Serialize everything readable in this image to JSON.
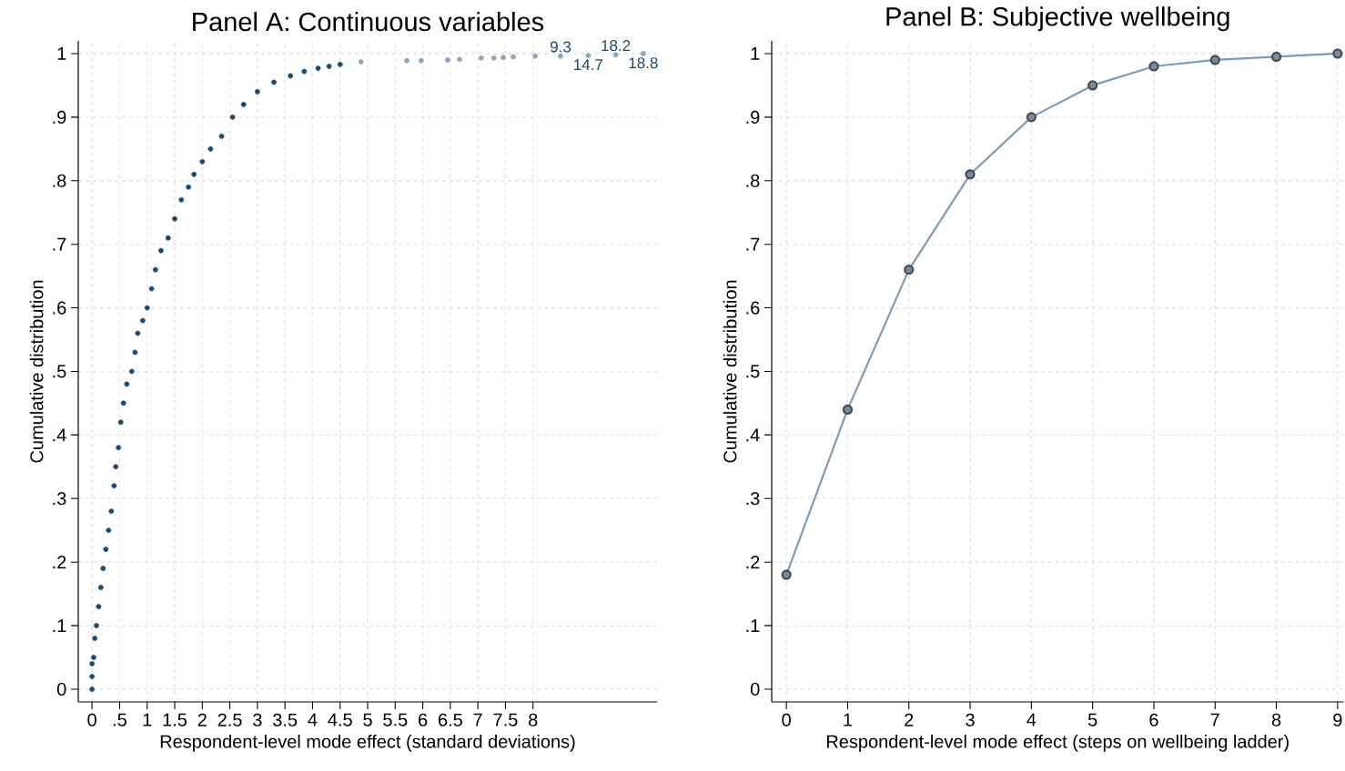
{
  "chart_data": [
    {
      "type": "scatter",
      "title": "Panel A: Continuous variables",
      "xlabel": "Respondent-level mode effect (standard deviations)",
      "ylabel": "Cumulative distribution",
      "xlim": [
        -0.25,
        10.25
      ],
      "ylim": [
        -0.02,
        1.02
      ],
      "xticks": [
        0,
        {
          "value": 0.5,
          "label": ".5"
        },
        1,
        1.5,
        2,
        2.5,
        3,
        3.5,
        4,
        4.5,
        5,
        5.5,
        6,
        6.5,
        7,
        7.5,
        8
      ],
      "yticks": [
        0,
        {
          "value": 0.1,
          "label": ".1"
        },
        {
          "value": 0.2,
          "label": ".2"
        },
        {
          "value": 0.3,
          "label": ".3"
        },
        {
          "value": 0.4,
          "label": ".4"
        },
        {
          "value": 0.5,
          "label": ".5"
        },
        {
          "value": 0.6,
          "label": ".6"
        },
        {
          "value": 0.7,
          "label": ".7"
        },
        {
          "value": 0.8,
          "label": ".8"
        },
        {
          "value": 0.9,
          "label": ".9"
        },
        1
      ],
      "grid": true,
      "marker": "circle",
      "series": [
        {
          "color": "#1c4a6e",
          "x": [
            0,
            0,
            0,
            0.03,
            0.05,
            0.08,
            0.12,
            0.16,
            0.2,
            0.25,
            0.3,
            0.35,
            0.4,
            0.43,
            0.48,
            0.52,
            0.57,
            0.63,
            0.72,
            0.78,
            0.83,
            0.92,
            1.0,
            1.08,
            1.15,
            1.25,
            1.38,
            1.5,
            1.62,
            1.75,
            1.85,
            2.0,
            2.15,
            2.35,
            2.55,
            2.75,
            3.0,
            3.3,
            3.6,
            3.85,
            4.1,
            4.3,
            4.5
          ],
          "values": [
            0,
            0.02,
            0.04,
            0.05,
            0.08,
            0.1,
            0.13,
            0.16,
            0.19,
            0.22,
            0.25,
            0.28,
            0.32,
            0.35,
            0.38,
            0.42,
            0.45,
            0.48,
            0.5,
            0.53,
            0.56,
            0.58,
            0.6,
            0.63,
            0.66,
            0.69,
            0.71,
            0.74,
            0.77,
            0.79,
            0.81,
            0.83,
            0.85,
            0.87,
            0.9,
            0.92,
            0.94,
            0.955,
            0.965,
            0.972,
            0.977,
            0.98,
            0.983
          ]
        },
        {
          "color": "#8ea5bb",
          "x": [
            4.88,
            5.71,
            5.97,
            6.45,
            6.67,
            7.06,
            7.29,
            7.46,
            7.64,
            8.04,
            8.5,
            9.0,
            9.5,
            10.0
          ],
          "values": [
            0.987,
            0.989,
            0.989,
            0.99,
            0.991,
            0.993,
            0.993,
            0.994,
            0.995,
            0.996,
            0.996,
            0.997,
            0.998,
            1.0
          ]
        }
      ],
      "annotations": [
        {
          "text": "9.3",
          "x": 8.5,
          "y": 0.996
        },
        {
          "text": "14.7",
          "x": 9.0,
          "y": 0.997
        },
        {
          "text": "18.2",
          "x": 9.5,
          "y": 0.998
        },
        {
          "text": "18.8",
          "x": 10.0,
          "y": 1.0
        }
      ]
    },
    {
      "type": "line",
      "title": "Panel B: Subjective wellbeing",
      "xlabel": "Respondent-level mode effect (steps on wellbeing ladder)",
      "ylabel": "Cumulative distribution",
      "xlim": [
        -0.24,
        9.1
      ],
      "ylim": [
        -0.02,
        1.02
      ],
      "xticks": [
        0,
        1,
        2,
        3,
        4,
        5,
        6,
        7,
        8,
        9
      ],
      "yticks": [
        0,
        {
          "value": 0.1,
          "label": ".1"
        },
        {
          "value": 0.2,
          "label": ".2"
        },
        {
          "value": 0.3,
          "label": ".3"
        },
        {
          "value": 0.4,
          "label": ".4"
        },
        {
          "value": 0.5,
          "label": ".5"
        },
        {
          "value": 0.6,
          "label": ".6"
        },
        {
          "value": 0.7,
          "label": ".7"
        },
        {
          "value": 0.8,
          "label": ".8"
        },
        {
          "value": 0.9,
          "label": ".9"
        },
        1
      ],
      "grid": true,
      "marker": "circle",
      "x": [
        0,
        1,
        2,
        3,
        4,
        5,
        6,
        7,
        8,
        9
      ],
      "series": [
        {
          "color": "#7f9bb3",
          "values": [
            0.18,
            0.44,
            0.66,
            0.81,
            0.9,
            0.95,
            0.98,
            0.99,
            0.995,
            1.0
          ]
        }
      ]
    }
  ]
}
